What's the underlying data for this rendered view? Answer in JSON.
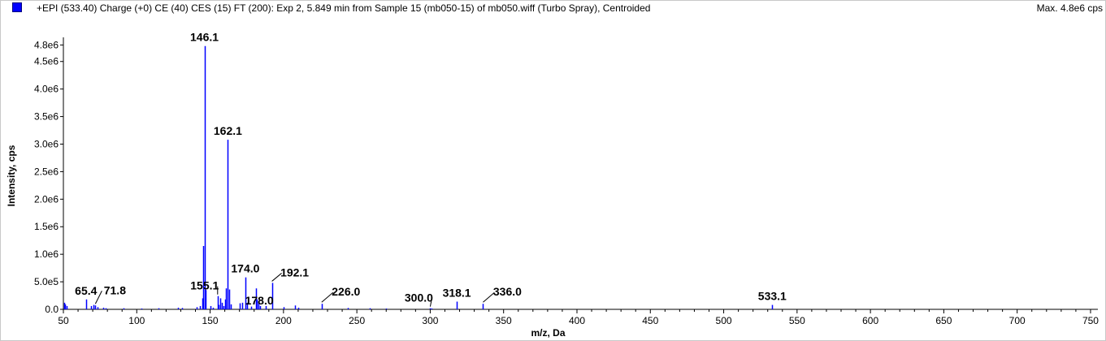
{
  "header": {
    "title": "+EPI (533.40) Charge (+0) CE (40) CES (15) FT (200): Exp 2, 5.849 min from Sample 15 (mb050-15) of mb050.wiff (Turbo Spray), Centroided",
    "max_label": "Max. 4.8e6 cps"
  },
  "colors": {
    "series": "#0000ff",
    "axis": "#000000",
    "label": "#000000"
  },
  "chart_data": {
    "type": "bar",
    "xlabel": "m/z, Da",
    "ylabel": "Intensity, cps",
    "xlim": [
      50,
      755
    ],
    "ylim": [
      0,
      4850000.0
    ],
    "grid": false,
    "x_ticks": [
      50,
      100,
      150,
      200,
      250,
      300,
      350,
      400,
      450,
      500,
      550,
      600,
      650,
      700,
      750
    ],
    "x_tick_labels": [
      "50",
      "100",
      "150",
      "200",
      "250",
      "300",
      "350",
      "400",
      "450",
      "500",
      "550",
      "600",
      "650",
      "700",
      "750"
    ],
    "y_ticks": [
      0,
      500000,
      1000000,
      1500000,
      2000000,
      2500000,
      3000000,
      3500000,
      4000000,
      4500000,
      4800000
    ],
    "y_tick_labels": [
      "0.0",
      "5.0e5",
      "1.0e6",
      "1.5e6",
      "2.0e6",
      "2.5e6",
      "3.0e6",
      "3.5e6",
      "4.0e6",
      "4.5e6",
      "4.8e6"
    ],
    "series": [
      {
        "x": [
          50.5,
          51.2,
          52.0,
          65.4,
          69.0,
          70.5,
          71.8,
          73.0,
          77.0,
          79.0,
          91.0,
          103.0,
          115.0,
          128.0,
          131.0,
          141.0,
          143.0,
          144.5,
          145.0,
          146.1,
          147.0,
          150.0,
          152.0,
          155.1,
          156.0,
          157.0,
          158.0,
          159.0,
          160.0,
          161.0,
          162.1,
          163.0,
          164.0,
          170.0,
          172.0,
          174.0,
          175.0,
          178.0,
          181.0,
          182.0,
          183.0,
          184.0,
          188.0,
          192.1,
          200.0,
          208.0,
          210.0,
          226.0,
          244.0,
          259.0,
          270.0,
          300.0,
          301.0,
          318.1,
          336.0,
          533.1
        ],
        "values": [
          120000,
          90000,
          60000,
          180000,
          60000,
          80000,
          70000,
          40000,
          30000,
          20000,
          20000,
          15000,
          20000,
          30000,
          25000,
          40000,
          60000,
          200000,
          1150000,
          4780000,
          350000,
          60000,
          30000,
          240000,
          80000,
          200000,
          120000,
          60000,
          180000,
          380000,
          3080000,
          360000,
          90000,
          110000,
          120000,
          580000,
          120000,
          50000,
          380000,
          180000,
          150000,
          60000,
          60000,
          480000,
          40000,
          70000,
          30000,
          100000,
          25000,
          20000,
          15000,
          20000,
          15000,
          140000,
          100000,
          80000
        ]
      }
    ],
    "peak_labels": [
      {
        "x": 65.4,
        "text": "65.4"
      },
      {
        "x": 71.8,
        "text": "71.8"
      },
      {
        "x": 146.1,
        "text": "146.1"
      },
      {
        "x": 155.1,
        "text": "155.1"
      },
      {
        "x": 162.1,
        "text": "162.1"
      },
      {
        "x": 174.0,
        "text": "174.0"
      },
      {
        "x": 178.0,
        "text": "178.0"
      },
      {
        "x": 192.1,
        "text": "192.1"
      },
      {
        "x": 226.0,
        "text": "226.0"
      },
      {
        "x": 300.0,
        "text": "300.0"
      },
      {
        "x": 318.1,
        "text": "318.1"
      },
      {
        "x": 336.0,
        "text": "336.0"
      },
      {
        "x": 533.1,
        "text": "533.1"
      }
    ]
  }
}
